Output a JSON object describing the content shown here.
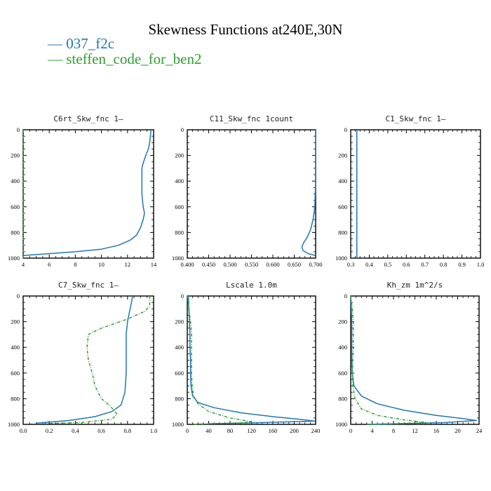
{
  "figure": {
    "title": "Skewness Functions at240E,30N",
    "legend": [
      {
        "name": "— 037_f2c",
        "color": "#1f77b4"
      },
      {
        "name": "— steffen_code_for_ben2",
        "color": "#2ca02c"
      }
    ]
  },
  "chart_data": [
    {
      "type": "line",
      "title": "C6rt_Skw_fnc   1–",
      "xlim": [
        4,
        14
      ],
      "ylim": [
        1000,
        0
      ],
      "xticks": [
        4,
        6,
        8,
        10,
        12,
        14
      ],
      "xtick_labels": [
        "4",
        "6",
        "8",
        "10",
        "12",
        "14"
      ],
      "yticks": [
        0,
        200,
        400,
        600,
        800,
        1000
      ],
      "series": [
        {
          "name": "037_f2c",
          "color": "#1f77b4",
          "style": "solid",
          "x": [
            13.8,
            13.7,
            13.6,
            13.4,
            13.2,
            13.1,
            13.1,
            13.1,
            13.2,
            13.3,
            13.2,
            13.0,
            12.7,
            12.2,
            11.3,
            10.0,
            8.0,
            6.0,
            4.0
          ],
          "y": [
            0,
            100,
            150,
            200,
            260,
            300,
            400,
            500,
            600,
            650,
            700,
            760,
            820,
            860,
            900,
            930,
            950,
            965,
            980
          ]
        },
        {
          "name": "steffen_code_for_ben2",
          "color": "#2ca02c",
          "style": "dashed",
          "x": [
            4.0,
            4.0,
            4.0,
            4.0,
            4.0,
            4.0
          ],
          "y": [
            0,
            200,
            400,
            600,
            800,
            1000
          ]
        }
      ]
    },
    {
      "type": "line",
      "title": "C11_Skw_fnc   1count",
      "xlim": [
        0.4,
        0.7
      ],
      "ylim": [
        1000,
        0
      ],
      "xticks": [
        0.4,
        0.45,
        0.5,
        0.55,
        0.6,
        0.65,
        0.7
      ],
      "xtick_labels": [
        "0.400",
        "0.450",
        "0.500",
        "0.550",
        "0.600",
        "0.650",
        "0.700"
      ],
      "yticks": [
        0,
        200,
        400,
        600,
        800,
        1000
      ],
      "series": [
        {
          "name": "037_f2c",
          "color": "#1f77b4",
          "style": "solid",
          "x": [
            0.7,
            0.7,
            0.7,
            0.7,
            0.698,
            0.694,
            0.688,
            0.68,
            0.672,
            0.668,
            0.67,
            0.683,
            0.699
          ],
          "y": [
            0,
            200,
            300,
            400,
            600,
            700,
            780,
            840,
            880,
            910,
            940,
            965,
            980
          ]
        }
      ]
    },
    {
      "type": "line",
      "title": "C1_Skw_fnc   1–",
      "xlim": [
        0.3,
        1.0
      ],
      "ylim": [
        1000,
        0
      ],
      "xticks": [
        0.3,
        0.4,
        0.5,
        0.6,
        0.7,
        0.8,
        0.9,
        1.0
      ],
      "xtick_labels": [
        "0.3",
        "0.4",
        "0.5",
        "0.6",
        "0.7",
        "0.8",
        "0.9",
        "1.0"
      ],
      "yticks": [
        0,
        200,
        400,
        600,
        800,
        1000
      ],
      "series": [
        {
          "name": "steffen_code_for_ben2",
          "color": "#2ca02c",
          "style": "dashed",
          "x": [
            0.333,
            0.333
          ],
          "y": [
            0,
            1000
          ]
        },
        {
          "name": "037_f2c",
          "color": "#1f77b4",
          "style": "solid",
          "x": [
            0.333,
            0.333
          ],
          "y": [
            0,
            1000
          ]
        }
      ]
    },
    {
      "type": "line",
      "title": "C7_Skw_fnc   1–",
      "xlim": [
        0.0,
        1.0
      ],
      "ylim": [
        1000,
        0
      ],
      "xticks": [
        0.0,
        0.2,
        0.4,
        0.6,
        0.8,
        1.0
      ],
      "xtick_labels": [
        "0.0",
        "0.2",
        "0.4",
        "0.6",
        "0.8",
        "1.0"
      ],
      "yticks": [
        0,
        200,
        400,
        600,
        800,
        1000
      ],
      "series": [
        {
          "name": "037_f2c",
          "color": "#1f77b4",
          "style": "solid",
          "x": [
            0.84,
            0.83,
            0.82,
            0.8,
            0.79,
            0.79,
            0.79,
            0.79,
            0.78,
            0.75,
            0.68,
            0.55,
            0.35,
            0.1
          ],
          "y": [
            0,
            50,
            100,
            200,
            300,
            400,
            500,
            600,
            750,
            850,
            900,
            940,
            970,
            990
          ]
        },
        {
          "name": "steffen_code_for_ben2",
          "color": "#2ca02c",
          "style": "dashed",
          "x": [
            0.97,
            0.97,
            0.93,
            0.8,
            0.6,
            0.5,
            0.49,
            0.5,
            0.53,
            0.55,
            0.6,
            0.67,
            0.72,
            0.68,
            0.45,
            0.15
          ],
          "y": [
            0,
            80,
            120,
            180,
            250,
            300,
            400,
            500,
            600,
            700,
            800,
            860,
            920,
            960,
            985,
            995
          ]
        }
      ]
    },
    {
      "type": "line",
      "title": "Lscale   1.0m",
      "xlim": [
        0,
        240
      ],
      "ylim": [
        1000,
        0
      ],
      "xticks": [
        0,
        40,
        80,
        120,
        160,
        200,
        240
      ],
      "xtick_labels": [
        "0",
        "40",
        "80",
        "120",
        "160",
        "200",
        "240"
      ],
      "yticks": [
        0,
        200,
        400,
        600,
        800,
        1000
      ],
      "series": [
        {
          "name": "037_f2c",
          "color": "#1f77b4",
          "style": "solid",
          "x": [
            2,
            3,
            4,
            5,
            5,
            6,
            6,
            7,
            10,
            20,
            50,
            100,
            160,
            210,
            238,
            150,
            40
          ],
          "y": [
            0,
            100,
            200,
            300,
            400,
            500,
            600,
            700,
            780,
            830,
            870,
            910,
            940,
            960,
            975,
            985,
            995
          ]
        },
        {
          "name": "steffen_code_for_ben2",
          "color": "#2ca02c",
          "style": "dashed",
          "x": [
            0,
            3,
            6,
            8,
            8,
            8,
            8,
            9,
            12,
            20,
            40,
            80,
            120,
            100,
            40,
            10
          ],
          "y": [
            0,
            100,
            200,
            300,
            400,
            500,
            600,
            700,
            780,
            840,
            900,
            950,
            980,
            990,
            995,
            1000
          ]
        }
      ]
    },
    {
      "type": "line",
      "title": "Kh_zm   1m^2/s",
      "xlim": [
        0,
        24
      ],
      "ylim": [
        1000,
        0
      ],
      "xticks": [
        0,
        4,
        8,
        12,
        16,
        20,
        24
      ],
      "xtick_labels": [
        "0",
        "4",
        "8",
        "12",
        "16",
        "20",
        "24"
      ],
      "yticks": [
        0,
        200,
        400,
        600,
        800,
        1000
      ],
      "series": [
        {
          "name": "037_f2c",
          "color": "#1f77b4",
          "style": "solid",
          "x": [
            0,
            0.1,
            0.2,
            0.2,
            0.2,
            0.2,
            0.3,
            0.6,
            2,
            5,
            10,
            16,
            21,
            23.5,
            18,
            8,
            3
          ],
          "y": [
            0,
            100,
            200,
            300,
            400,
            500,
            600,
            700,
            780,
            840,
            890,
            930,
            955,
            970,
            985,
            995,
            1000
          ]
        },
        {
          "name": "steffen_code_for_ben2",
          "color": "#2ca02c",
          "style": "dashed",
          "x": [
            0,
            0.3,
            0.5,
            0.5,
            0.5,
            0.4,
            0.3,
            0.4,
            0.8,
            2,
            5,
            10,
            14,
            10,
            3
          ],
          "y": [
            0,
            100,
            200,
            300,
            400,
            500,
            600,
            700,
            800,
            880,
            930,
            965,
            985,
            995,
            1000
          ]
        }
      ]
    }
  ]
}
